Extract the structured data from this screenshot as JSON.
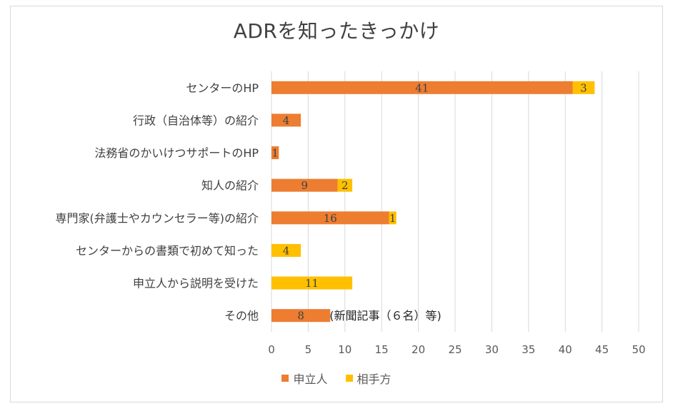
{
  "chart_data": {
    "type": "bar",
    "orientation": "horizontal",
    "stacked": true,
    "title": "ADRを知ったきっかけ",
    "categories": [
      "センターのHP",
      "行政（自治体等）の紹介",
      "法務省のかいけつサポートのHP",
      "知人の紹介",
      "専門家(弁護士やカウンセラー等)の紹介",
      "センターからの書類で初めて知った",
      "申立人から説明を受けた",
      "その他"
    ],
    "series": [
      {
        "name": "申立人",
        "color": "#ED7D31",
        "values": [
          41,
          4,
          1,
          9,
          16,
          0,
          0,
          8
        ]
      },
      {
        "name": "相手方",
        "color": "#FFC000",
        "values": [
          3,
          0,
          0,
          2,
          1,
          4,
          11,
          0
        ]
      }
    ],
    "xlim": [
      0,
      50
    ],
    "xticks": [
      0,
      5,
      10,
      15,
      20,
      25,
      30,
      35,
      40,
      45,
      50
    ],
    "grid": "vertical",
    "legend": "bottom",
    "annotations": [
      {
        "category": "その他",
        "text": "(新聞記事（６名）等)"
      }
    ]
  }
}
